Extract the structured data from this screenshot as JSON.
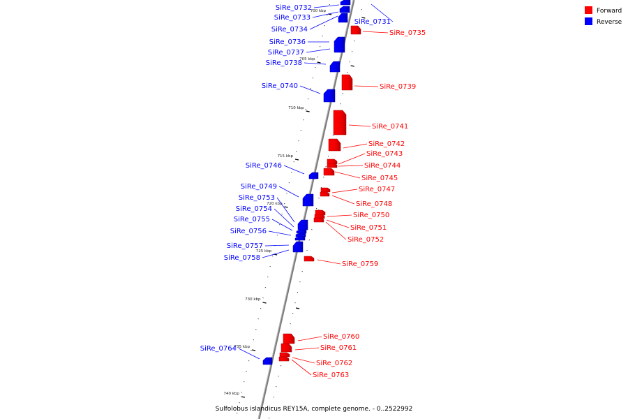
{
  "caption": "Sulfolobus islandicus REY15A, complete genome. - 0..2522992",
  "legend": [
    {
      "label": "Forward",
      "color": "#ff0000"
    },
    {
      "label": "Reverse",
      "color": "#0000ff"
    }
  ],
  "colors": {
    "forward": "#ff0000",
    "reverse": "#0000ff",
    "backbone": "#888888"
  },
  "ticks": [
    "700 kbp",
    "705 kbp",
    "710 kbp",
    "715 kbp",
    "720 kbp",
    "725 kbp",
    "730 kbp",
    "735 kbp",
    "740 kbp"
  ],
  "genes": [
    {
      "name": "SiRe_0731",
      "strand": "reverse"
    },
    {
      "name": "SiRe_0732",
      "strand": "reverse"
    },
    {
      "name": "SiRe_0733",
      "strand": "reverse"
    },
    {
      "name": "SiRe_0734",
      "strand": "reverse"
    },
    {
      "name": "SiRe_0735",
      "strand": "forward"
    },
    {
      "name": "SiRe_0736",
      "strand": "reverse"
    },
    {
      "name": "SiRe_0737",
      "strand": "reverse"
    },
    {
      "name": "SiRe_0738",
      "strand": "reverse"
    },
    {
      "name": "SiRe_0739",
      "strand": "forward"
    },
    {
      "name": "SiRe_0740",
      "strand": "reverse"
    },
    {
      "name": "SiRe_0741",
      "strand": "forward"
    },
    {
      "name": "SiRe_0742",
      "strand": "forward"
    },
    {
      "name": "SiRe_0743",
      "strand": "forward"
    },
    {
      "name": "SiRe_0744",
      "strand": "forward"
    },
    {
      "name": "SiRe_0745",
      "strand": "forward"
    },
    {
      "name": "SiRe_0746",
      "strand": "reverse"
    },
    {
      "name": "SiRe_0747",
      "strand": "forward"
    },
    {
      "name": "SiRe_0748",
      "strand": "forward"
    },
    {
      "name": "SiRe_0749",
      "strand": "reverse"
    },
    {
      "name": "SiRe_0750",
      "strand": "forward"
    },
    {
      "name": "SiRe_0751",
      "strand": "forward"
    },
    {
      "name": "SiRe_0752",
      "strand": "forward"
    },
    {
      "name": "SiRe_0753",
      "strand": "reverse"
    },
    {
      "name": "SiRe_0754",
      "strand": "reverse"
    },
    {
      "name": "SiRe_0755",
      "strand": "reverse"
    },
    {
      "name": "SiRe_0756",
      "strand": "reverse"
    },
    {
      "name": "SiRe_0757",
      "strand": "reverse"
    },
    {
      "name": "SiRe_0758",
      "strand": "reverse"
    },
    {
      "name": "SiRe_0759",
      "strand": "forward"
    },
    {
      "name": "SiRe_0760",
      "strand": "forward"
    },
    {
      "name": "SiRe_0761",
      "strand": "forward"
    },
    {
      "name": "SiRe_0762",
      "strand": "forward"
    },
    {
      "name": "SiRe_0763",
      "strand": "forward"
    },
    {
      "name": "SiRe_0764",
      "strand": "reverse"
    }
  ]
}
